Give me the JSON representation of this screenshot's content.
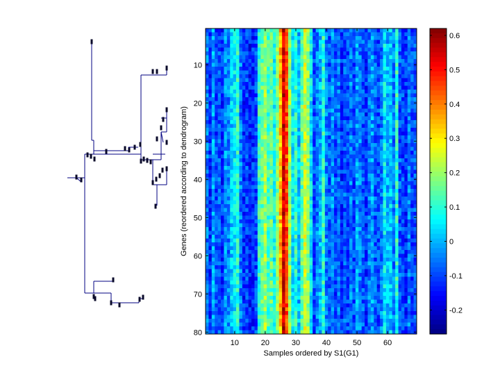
{
  "chart_data": [
    {
      "type": "dendrogram",
      "orientation": "left-to-right",
      "leaves": 80,
      "line_color": "#000080"
    },
    {
      "type": "heatmap",
      "xlabel": "Samples ordered by S1(G1)",
      "ylabel": "Genes (reordered according to dendrogram)",
      "x_range": [
        1,
        69
      ],
      "y_range": [
        1,
        80
      ],
      "x_ticks": [
        10,
        20,
        30,
        40,
        50,
        60
      ],
      "y_ticks": [
        10,
        20,
        30,
        40,
        50,
        60,
        70,
        80
      ],
      "y_reversed": true,
      "grid": false,
      "colormap": "jet",
      "color_range": [
        -0.27,
        0.62
      ],
      "colorbar_ticks": [
        -0.2,
        -0.1,
        0,
        0.1,
        0.2,
        0.3,
        0.4,
        0.5,
        0.6
      ],
      "colorbar_tick_labels": [
        "-0.2",
        "-0.1",
        "0",
        "0.1",
        "0.2",
        "0.3",
        "0.4",
        "0.5",
        "0.6"
      ],
      "column_profile": [
        -0.05,
        -0.12,
        -0.02,
        -0.1,
        -0.08,
        -0.12,
        -0.03,
        -0.05,
        0.02,
        0.05,
        0.1,
        -0.05,
        -0.12,
        -0.1,
        -0.14,
        -0.12,
        -0.1,
        0.1,
        0.15,
        0.2,
        0.12,
        0.15,
        0.08,
        0.18,
        0.35,
        0.55,
        0.45,
        0.2,
        0.05,
        0.1,
        0.0,
        0.15,
        0.25,
        0.18,
        0.05,
        -0.1,
        -0.05,
        0.0,
        0.1,
        -0.05,
        -0.08,
        -0.03,
        -0.1,
        -0.05,
        -0.12,
        -0.08,
        -0.1,
        -0.05,
        -0.1,
        -0.02,
        -0.05,
        -0.08,
        -0.12,
        -0.05,
        -0.02,
        -0.08,
        -0.1,
        -0.05,
        0.05,
        0.0,
        0.02,
        -0.05,
        0.1,
        -0.08,
        -0.1,
        -0.12,
        -0.05,
        -0.1,
        -0.08
      ],
      "noise_amplitude": 0.07
    }
  ]
}
